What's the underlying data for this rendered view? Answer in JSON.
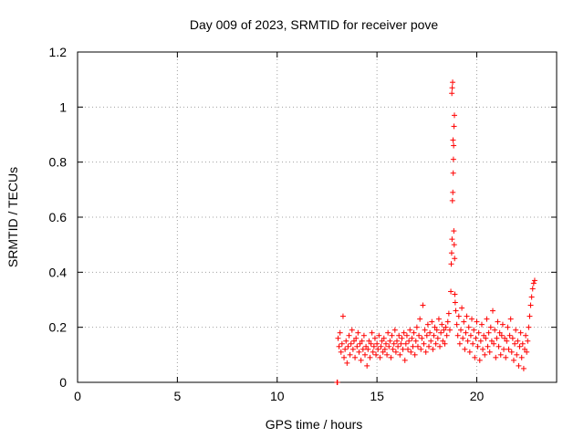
{
  "chart_data": {
    "type": "scatter",
    "title": "Day 009 of 2023, SRMTID for receiver pove",
    "xlabel": "GPS time / hours",
    "ylabel": "SRMTID / TECUs",
    "xlim": [
      0,
      24
    ],
    "ylim": [
      0,
      1.2
    ],
    "xticks": [
      0,
      5,
      10,
      15,
      20
    ],
    "xtick_labels": [
      "0",
      "5",
      "10",
      "15",
      "20"
    ],
    "yticks": [
      0,
      0.2,
      0.4,
      0.6,
      0.8,
      1.0,
      1.2
    ],
    "ytick_labels": [
      "0",
      "0.2",
      "0.4",
      "0.6",
      "0.8",
      "1",
      "1.2"
    ],
    "grid": true,
    "marker": "+",
    "color": "#ff0000",
    "series": [
      {
        "name": "SRMTID",
        "points": [
          [
            13.0,
            0.0
          ],
          [
            13.02,
            0.0
          ],
          [
            13.05,
            0.16
          ],
          [
            13.1,
            0.13
          ],
          [
            13.15,
            0.18
          ],
          [
            13.2,
            0.11
          ],
          [
            13.25,
            0.14
          ],
          [
            13.3,
            0.24
          ],
          [
            13.35,
            0.09
          ],
          [
            13.4,
            0.12
          ],
          [
            13.45,
            0.15
          ],
          [
            13.5,
            0.07
          ],
          [
            13.55,
            0.13
          ],
          [
            13.6,
            0.17
          ],
          [
            13.65,
            0.1
          ],
          [
            13.7,
            0.14
          ],
          [
            13.75,
            0.19
          ],
          [
            13.8,
            0.12
          ],
          [
            13.85,
            0.15
          ],
          [
            13.9,
            0.09
          ],
          [
            13.95,
            0.16
          ],
          [
            14.0,
            0.13
          ],
          [
            14.05,
            0.18
          ],
          [
            14.1,
            0.11
          ],
          [
            14.15,
            0.14
          ],
          [
            14.2,
            0.08
          ],
          [
            14.25,
            0.15
          ],
          [
            14.3,
            0.12
          ],
          [
            14.35,
            0.17
          ],
          [
            14.4,
            0.1
          ],
          [
            14.45,
            0.13
          ],
          [
            14.5,
            0.06
          ],
          [
            14.55,
            0.12
          ],
          [
            14.6,
            0.15
          ],
          [
            14.65,
            0.09
          ],
          [
            14.7,
            0.14
          ],
          [
            14.75,
            0.18
          ],
          [
            14.8,
            0.11
          ],
          [
            14.85,
            0.13
          ],
          [
            14.9,
            0.16
          ],
          [
            14.95,
            0.1
          ],
          [
            15.0,
            0.14
          ],
          [
            15.05,
            0.12
          ],
          [
            15.1,
            0.17
          ],
          [
            15.15,
            0.09
          ],
          [
            15.2,
            0.13
          ],
          [
            15.25,
            0.15
          ],
          [
            15.3,
            0.11
          ],
          [
            15.35,
            0.16
          ],
          [
            15.4,
            0.12
          ],
          [
            15.45,
            0.14
          ],
          [
            15.5,
            0.1
          ],
          [
            15.55,
            0.18
          ],
          [
            15.6,
            0.13
          ],
          [
            15.65,
            0.15
          ],
          [
            15.7,
            0.09
          ],
          [
            15.75,
            0.17
          ],
          [
            15.8,
            0.12
          ],
          [
            15.85,
            0.14
          ],
          [
            15.9,
            0.19
          ],
          [
            15.95,
            0.11
          ],
          [
            16.0,
            0.15
          ],
          [
            16.05,
            0.13
          ],
          [
            16.1,
            0.17
          ],
          [
            16.15,
            0.1
          ],
          [
            16.2,
            0.14
          ],
          [
            16.25,
            0.16
          ],
          [
            16.3,
            0.12
          ],
          [
            16.35,
            0.18
          ],
          [
            16.4,
            0.08
          ],
          [
            16.45,
            0.14
          ],
          [
            16.5,
            0.17
          ],
          [
            16.55,
            0.12
          ],
          [
            16.6,
            0.15
          ],
          [
            16.65,
            0.19
          ],
          [
            16.7,
            0.11
          ],
          [
            16.75,
            0.16
          ],
          [
            16.8,
            0.13
          ],
          [
            16.85,
            0.18
          ],
          [
            16.9,
            0.1
          ],
          [
            16.95,
            0.15
          ],
          [
            17.0,
            0.2
          ],
          [
            17.05,
            0.13
          ],
          [
            17.1,
            0.17
          ],
          [
            17.15,
            0.23
          ],
          [
            17.2,
            0.12
          ],
          [
            17.25,
            0.16
          ],
          [
            17.3,
            0.28
          ],
          [
            17.35,
            0.14
          ],
          [
            17.4,
            0.19
          ],
          [
            17.45,
            0.11
          ],
          [
            17.5,
            0.17
          ],
          [
            17.55,
            0.21
          ],
          [
            17.6,
            0.13
          ],
          [
            17.65,
            0.18
          ],
          [
            17.7,
            0.15
          ],
          [
            17.75,
            0.22
          ],
          [
            17.8,
            0.12
          ],
          [
            17.85,
            0.17
          ],
          [
            17.9,
            0.2
          ],
          [
            17.95,
            0.14
          ],
          [
            18.0,
            0.19
          ],
          [
            18.05,
            0.16
          ],
          [
            18.1,
            0.23
          ],
          [
            18.15,
            0.13
          ],
          [
            18.2,
            0.18
          ],
          [
            18.25,
            0.21
          ],
          [
            18.3,
            0.15
          ],
          [
            18.35,
            0.19
          ],
          [
            18.4,
            0.14
          ],
          [
            18.45,
            0.2
          ],
          [
            18.5,
            0.17
          ],
          [
            18.55,
            0.22
          ],
          [
            18.6,
            0.25
          ],
          [
            18.65,
            0.19
          ],
          [
            18.7,
            0.33
          ],
          [
            18.72,
            0.43
          ],
          [
            18.74,
            0.47
          ],
          [
            18.76,
            0.52
          ],
          [
            18.78,
            0.66
          ],
          [
            18.8,
            0.69
          ],
          [
            18.82,
            0.76
          ],
          [
            18.84,
            0.86
          ],
          [
            18.86,
            0.93
          ],
          [
            18.88,
            0.97
          ],
          [
            18.75,
            1.05
          ],
          [
            18.77,
            1.07
          ],
          [
            18.79,
            1.09
          ],
          [
            18.81,
            0.88
          ],
          [
            18.83,
            0.81
          ],
          [
            18.85,
            0.55
          ],
          [
            18.87,
            0.5
          ],
          [
            18.89,
            0.45
          ],
          [
            18.9,
            0.32
          ],
          [
            18.92,
            0.29
          ],
          [
            18.95,
            0.26
          ],
          [
            19.0,
            0.21
          ],
          [
            19.05,
            0.17
          ],
          [
            19.1,
            0.24
          ],
          [
            19.15,
            0.14
          ],
          [
            19.2,
            0.19
          ],
          [
            19.25,
            0.27
          ],
          [
            19.3,
            0.16
          ],
          [
            19.35,
            0.22
          ],
          [
            19.4,
            0.12
          ],
          [
            19.45,
            0.18
          ],
          [
            19.5,
            0.24
          ],
          [
            19.55,
            0.15
          ],
          [
            19.6,
            0.2
          ],
          [
            19.65,
            0.11
          ],
          [
            19.7,
            0.17
          ],
          [
            19.75,
            0.23
          ],
          [
            19.8,
            0.14
          ],
          [
            19.85,
            0.19
          ],
          [
            19.9,
            0.09
          ],
          [
            19.95,
            0.16
          ],
          [
            20.0,
            0.22
          ],
          [
            20.05,
            0.13
          ],
          [
            20.1,
            0.18
          ],
          [
            20.15,
            0.08
          ],
          [
            20.2,
            0.15
          ],
          [
            20.25,
            0.21
          ],
          [
            20.3,
            0.12
          ],
          [
            20.35,
            0.17
          ],
          [
            20.4,
            0.1
          ],
          [
            20.45,
            0.16
          ],
          [
            20.5,
            0.23
          ],
          [
            20.55,
            0.13
          ],
          [
            20.6,
            0.18
          ],
          [
            20.65,
            0.11
          ],
          [
            20.7,
            0.2
          ],
          [
            20.75,
            0.15
          ],
          [
            20.8,
            0.26
          ],
          [
            20.85,
            0.14
          ],
          [
            20.9,
            0.19
          ],
          [
            20.95,
            0.09
          ],
          [
            21.0,
            0.16
          ],
          [
            21.05,
            0.22
          ],
          [
            21.1,
            0.13
          ],
          [
            21.15,
            0.18
          ],
          [
            21.2,
            0.1
          ],
          [
            21.25,
            0.17
          ],
          [
            21.3,
            0.21
          ],
          [
            21.35,
            0.12
          ],
          [
            21.4,
            0.16
          ],
          [
            21.45,
            0.09
          ],
          [
            21.5,
            0.15
          ],
          [
            21.55,
            0.2
          ],
          [
            21.6,
            0.12
          ],
          [
            21.65,
            0.17
          ],
          [
            21.7,
            0.23
          ],
          [
            21.75,
            0.11
          ],
          [
            21.8,
            0.16
          ],
          [
            21.85,
            0.08
          ],
          [
            21.9,
            0.14
          ],
          [
            21.95,
            0.19
          ],
          [
            22.0,
            0.1
          ],
          [
            22.05,
            0.15
          ],
          [
            22.1,
            0.06
          ],
          [
            22.15,
            0.13
          ],
          [
            22.2,
            0.18
          ],
          [
            22.25,
            0.09
          ],
          [
            22.3,
            0.14
          ],
          [
            22.35,
            0.05
          ],
          [
            22.4,
            0.12
          ],
          [
            22.45,
            0.17
          ],
          [
            22.5,
            0.11
          ],
          [
            22.55,
            0.15
          ],
          [
            22.6,
            0.2
          ],
          [
            22.65,
            0.24
          ],
          [
            22.7,
            0.28
          ],
          [
            22.75,
            0.31
          ],
          [
            22.8,
            0.34
          ],
          [
            22.85,
            0.36
          ],
          [
            22.9,
            0.37
          ]
        ]
      }
    ]
  }
}
